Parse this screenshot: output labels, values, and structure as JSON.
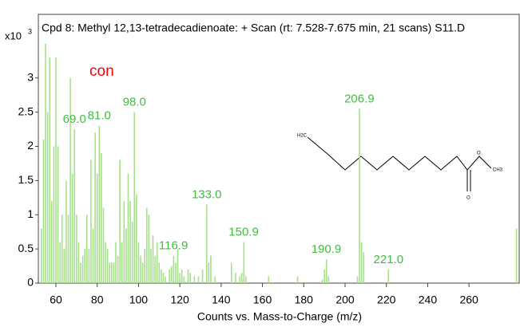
{
  "chart_data": {
    "type": "stick",
    "title": "Cpd 8: Methyl 12,13-tetradecadienoate: + Scan (rt: 7.528-7.675 min, 21 scans) S11.D",
    "y_unit": {
      "base": "x10",
      "exponent": "3"
    },
    "x_label": "Counts vs. Mass-to-Charge (m/z)",
    "annotation": "con",
    "annotation_color": "#ff0000",
    "color": "#a6e08a",
    "label_color": "#3dbf3d",
    "xlim": [
      51.5,
      284.3
    ],
    "ylim": [
      0,
      3.93
    ],
    "xticks": [
      60,
      80,
      100,
      120,
      140,
      160,
      180,
      200,
      220,
      240,
      260
    ],
    "yticks": [
      0,
      0.5,
      1,
      1.5,
      2,
      2.5,
      3
    ],
    "x": [
      53,
      54,
      55,
      56,
      57,
      58,
      59,
      60,
      61,
      62,
      63,
      64,
      65,
      66,
      67,
      68,
      69,
      70,
      71,
      72,
      73,
      74,
      75,
      76,
      77,
      78,
      79,
      80,
      81,
      82,
      83,
      84,
      85,
      86,
      87,
      88,
      89,
      90,
      91,
      92,
      93,
      94,
      95,
      96,
      97,
      98,
      99,
      100,
      101,
      102,
      103,
      104,
      105,
      106,
      107,
      108,
      109,
      110,
      111,
      112,
      113,
      115,
      116,
      117,
      118,
      119,
      120,
      121,
      122,
      124,
      125,
      127,
      129,
      131,
      133,
      134,
      135,
      137,
      145,
      147,
      149,
      150,
      151,
      152,
      163,
      177,
      189,
      190,
      191,
      192,
      206,
      207,
      208,
      209,
      221,
      283
    ],
    "values": [
      0.8,
      2.1,
      3.5,
      2.5,
      3.3,
      1.2,
      2.0,
      3.3,
      2.0,
      0.6,
      1.0,
      0.5,
      1.5,
      1.0,
      3.0,
      1.6,
      2.25,
      1.0,
      0.6,
      0.3,
      0.4,
      0.5,
      1.0,
      0.5,
      1.8,
      0.8,
      2.2,
      1.6,
      2.3,
      1.9,
      1.1,
      0.6,
      0.5,
      0.3,
      0.3,
      0.3,
      0.6,
      0.4,
      1.8,
      0.6,
      1.2,
      0.8,
      1.6,
      1.2,
      0.9,
      2.5,
      1.3,
      0.6,
      0.4,
      0.3,
      0.5,
      1.1,
      1.0,
      0.5,
      0.7,
      0.4,
      0.6,
      0.3,
      0.2,
      0.15,
      0.1,
      0.2,
      0.25,
      0.4,
      0.3,
      0.5,
      0.15,
      0.2,
      0.1,
      0.2,
      0.15,
      0.1,
      0.1,
      0.2,
      1.15,
      0.3,
      0.4,
      0.1,
      0.3,
      0.15,
      0.1,
      0.15,
      0.6,
      0.1,
      0.1,
      0.1,
      0.05,
      0.2,
      0.35,
      0.1,
      0.1,
      2.55,
      0.6,
      0.45,
      0.2,
      0.8
    ],
    "peak_labels": [
      {
        "value": 69.0,
        "label": "69.0",
        "height": 2.25
      },
      {
        "value": 81.0,
        "label": "81.0",
        "height": 2.3
      },
      {
        "value": 98.0,
        "label": "98.0",
        "height": 2.5
      },
      {
        "value": 116.9,
        "label": "116.9",
        "height": 0.4
      },
      {
        "value": 133.0,
        "label": "133.0",
        "height": 1.15
      },
      {
        "value": 150.9,
        "label": "150.9",
        "height": 0.6
      },
      {
        "value": 190.9,
        "label": "190.9",
        "height": 0.35
      },
      {
        "value": 206.9,
        "label": "206.9",
        "height": 2.55
      },
      {
        "value": 221.0,
        "label": "221.0",
        "height": 0.2
      }
    ],
    "structure_labels": {
      "left": "H2C",
      "carbonyl_o": "O",
      "ester_o": "O",
      "methyl": "CH3"
    }
  }
}
